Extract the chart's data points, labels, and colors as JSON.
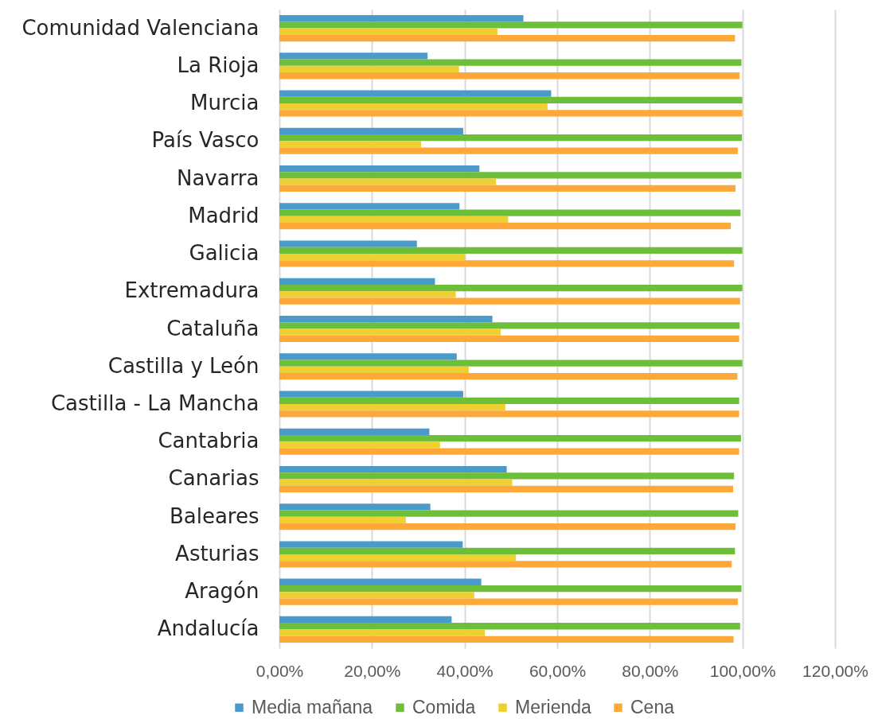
{
  "chart_data": {
    "type": "bar",
    "orientation": "horizontal",
    "categories": [
      "Comunidad Valenciana",
      "La Rioja",
      "Murcia",
      "País Vasco",
      "Navarra",
      "Madrid",
      "Galicia",
      "Extremadura",
      "Cataluña",
      "Castilla y León",
      "Castilla - La Mancha",
      "Cantabria",
      "Canarias",
      "Baleares",
      "Asturias",
      "Aragón",
      "Andalucía"
    ],
    "series": [
      {
        "name": "Media mañana",
        "color": "#4a9bcb",
        "values": [
          52.7,
          32.0,
          58.7,
          39.7,
          43.2,
          38.9,
          29.7,
          33.6,
          46.0,
          38.3,
          39.7,
          32.4,
          49.1,
          32.6,
          39.6,
          43.6,
          37.2
        ]
      },
      {
        "name": "Comida",
        "color": "#6dbf3a",
        "values": [
          100,
          99.8,
          100,
          99.9,
          99.8,
          99.6,
          100,
          100,
          99.4,
          100,
          99.3,
          99.7,
          98.2,
          99.1,
          98.4,
          99.8,
          99.5
        ]
      },
      {
        "name": "Merienda",
        "color": "#efd032",
        "values": [
          47.1,
          38.8,
          57.9,
          30.6,
          46.8,
          49.4,
          40.1,
          38.1,
          47.8,
          40.9,
          48.8,
          34.7,
          50.3,
          27.3,
          51.1,
          42.1,
          44.4
        ]
      },
      {
        "name": "Cena",
        "color": "#fea83a",
        "values": [
          98.4,
          99.4,
          100,
          99.0,
          98.5,
          97.5,
          98.2,
          99.5,
          99.3,
          98.9,
          99.3,
          99.3,
          98.0,
          98.5,
          97.7,
          99.0,
          98.1
        ]
      }
    ],
    "xlim": [
      0,
      120
    ],
    "xticks": [
      {
        "value": 0,
        "label": "0,00%"
      },
      {
        "value": 20,
        "label": "20,00%"
      },
      {
        "value": 40,
        "label": "40,00%"
      },
      {
        "value": 60,
        "label": "60,00%"
      },
      {
        "value": 80,
        "label": "80,00%"
      },
      {
        "value": 100,
        "label": "100,00%"
      },
      {
        "value": 120,
        "label": "120,00%"
      }
    ],
    "grid": "x",
    "legend": "bottom"
  }
}
